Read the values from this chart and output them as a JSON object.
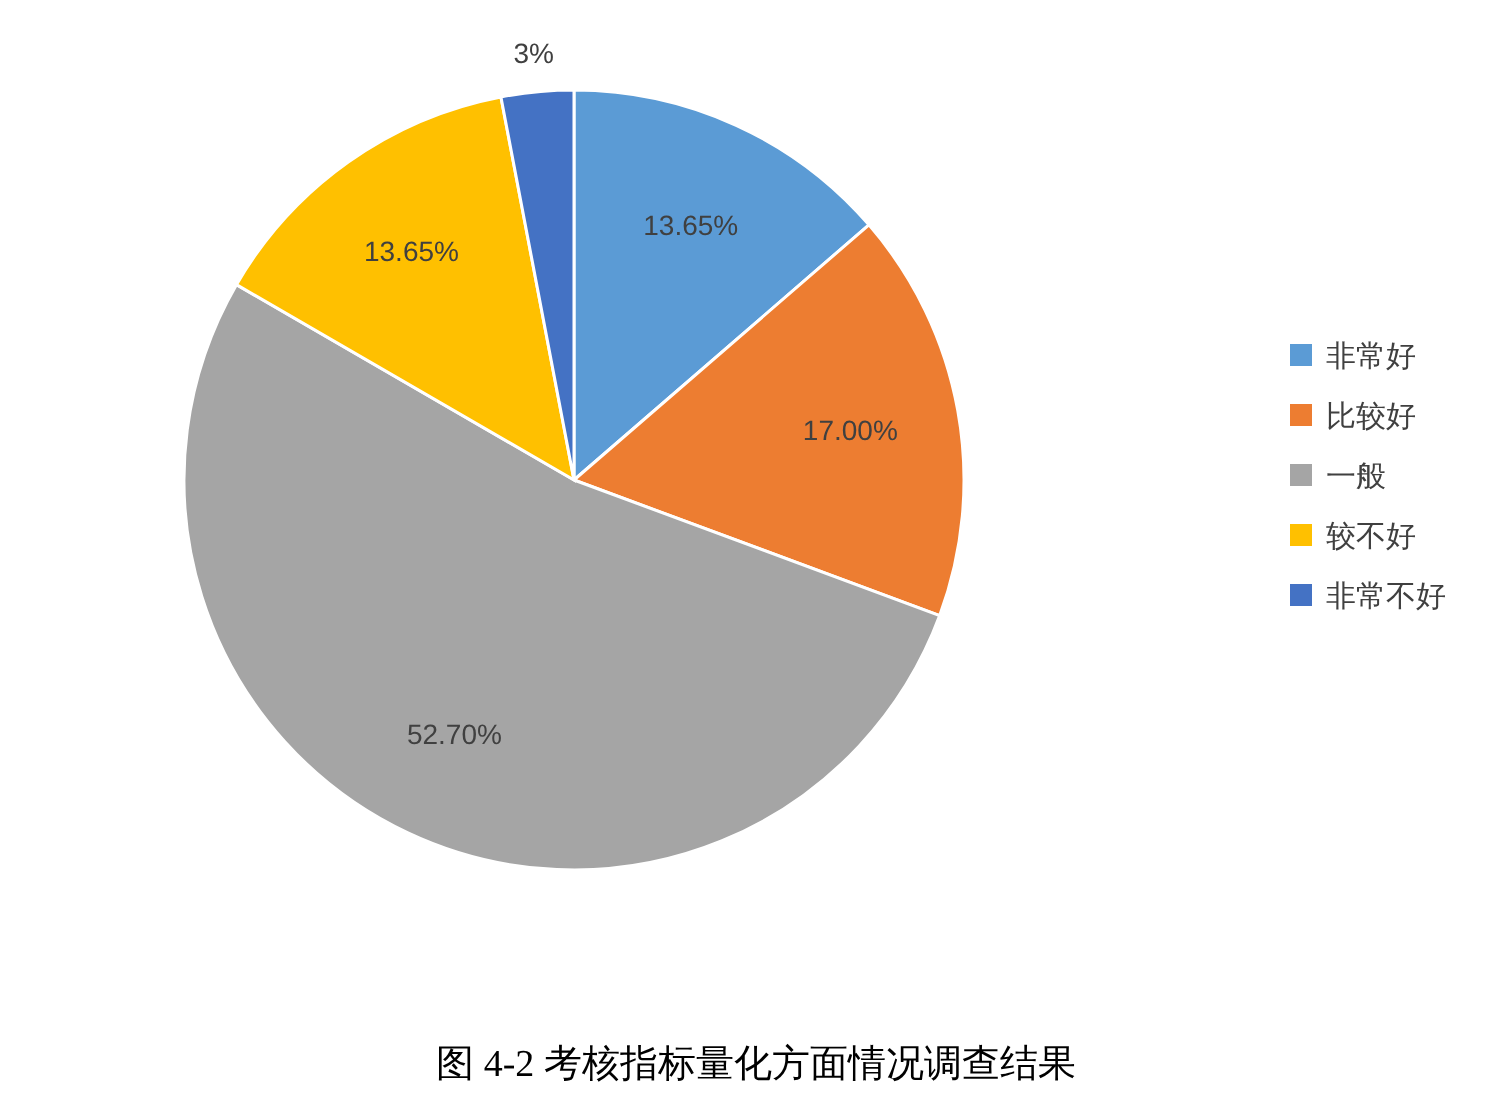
{
  "chart_data": {
    "type": "pie",
    "title": "图 4-2  考核指标量化方面情况调查结果",
    "categories": [
      "非常好",
      "比较好",
      "一般",
      "较不好",
      "非常不好"
    ],
    "values": [
      13.65,
      17.0,
      52.7,
      13.65,
      3
    ],
    "value_labels": [
      "13.65%",
      "17.00%",
      "52.70%",
      "13.65%",
      "3%"
    ],
    "colors": [
      "#5b9bd5",
      "#ed7d31",
      "#a5a5a5",
      "#ffc000",
      "#4472c4"
    ],
    "legend": "right"
  }
}
